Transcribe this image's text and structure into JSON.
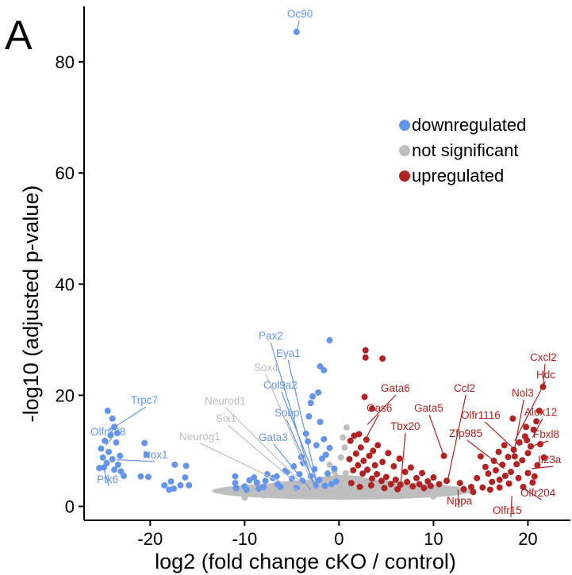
{
  "panel_label": "A",
  "chart_data": {
    "type": "scatter",
    "title": "",
    "xlabel": "log2 (fold change cKO / control)",
    "ylabel": "-log10 (adjusted p-value)",
    "xlim": [
      -27,
      24.5
    ],
    "ylim": [
      -2.5,
      90
    ],
    "xticks": [
      -20,
      -10,
      0,
      10,
      20
    ],
    "yticks": [
      0,
      20,
      40,
      60,
      80
    ],
    "grid": false,
    "legend_position": "top-right",
    "colors": {
      "downregulated": "#6495ED",
      "not_significant": "#BEBEBE",
      "upregulated": "#B22222",
      "axis": "#000000"
    },
    "legend": [
      {
        "label": "downregulated",
        "color": "#6495ED"
      },
      {
        "label": "not significant",
        "color": "#BEBEBE"
      },
      {
        "label": "upregulated",
        "color": "#B22222"
      }
    ],
    "series": [
      {
        "name": "downregulated",
        "color": "#6495ED",
        "points": [
          [
            -24.5,
            17.2
          ],
          [
            -24.0,
            15.8
          ],
          [
            -23.8,
            14.3
          ],
          [
            -23.5,
            13.2
          ],
          [
            -24.2,
            12.8
          ],
          [
            -23.6,
            11.5
          ],
          [
            -24.8,
            11.8
          ],
          [
            -25.2,
            10.4
          ],
          [
            -24.4,
            9.8
          ],
          [
            -23.2,
            9.1
          ],
          [
            -24.0,
            8.5
          ],
          [
            -25.0,
            8.8
          ],
          [
            -24.6,
            7.8
          ],
          [
            -23.4,
            7.5
          ],
          [
            -24.9,
            7.0
          ],
          [
            -23.8,
            6.6
          ],
          [
            -25.4,
            6.9
          ],
          [
            -23.1,
            6.3
          ],
          [
            -22.8,
            5.5
          ],
          [
            -21.0,
            5.4
          ],
          [
            -20.2,
            5.3
          ],
          [
            -20.6,
            11.4
          ],
          [
            -20.4,
            9.3
          ],
          [
            -17.4,
            7.5
          ],
          [
            -17.8,
            4.5
          ],
          [
            -16.2,
            7.3
          ],
          [
            -16.3,
            5.2
          ],
          [
            -15.9,
            3.8
          ],
          [
            -16.8,
            3.8
          ],
          [
            -17.5,
            3.2
          ],
          [
            -18.5,
            3.8
          ],
          [
            -18.0,
            3.0
          ],
          [
            -11.0,
            5.4
          ],
          [
            -11.0,
            4.2
          ],
          [
            -10.9,
            3.3
          ],
          [
            -10.0,
            3.6
          ],
          [
            -9.5,
            4.7
          ],
          [
            -9.0,
            5.2
          ],
          [
            -8.5,
            3.2
          ],
          [
            -8.0,
            3.5
          ],
          [
            -7.6,
            5.8
          ],
          [
            -7.0,
            5.1
          ],
          [
            -6.5,
            4.0
          ],
          [
            -6.2,
            3.5
          ],
          [
            -5.5,
            6.2
          ],
          [
            -5.0,
            5.0
          ],
          [
            -4.8,
            7.2
          ],
          [
            -4.5,
            3.3
          ],
          [
            -4.2,
            5.8
          ],
          [
            -4.0,
            8.9
          ],
          [
            -3.8,
            7.8
          ],
          [
            -3.5,
            13.1
          ],
          [
            -3.3,
            11.7
          ],
          [
            -3.2,
            16.2
          ],
          [
            -3.0,
            18.6
          ],
          [
            -2.8,
            19.8
          ],
          [
            -2.6,
            6.7
          ],
          [
            -2.4,
            11.0
          ],
          [
            -2.2,
            20.5
          ],
          [
            -2.0,
            15.2
          ],
          [
            -1.8,
            8.6
          ],
          [
            -1.6,
            12.1
          ],
          [
            -1.4,
            9.3
          ],
          [
            -1.2,
            5.9
          ],
          [
            -1.0,
            10.5
          ],
          [
            -0.8,
            4.0
          ],
          [
            -0.5,
            6.8
          ],
          [
            -0.3,
            4.5
          ],
          [
            -2.0,
            25.2
          ],
          [
            -1.6,
            24.5
          ],
          [
            -1.0,
            29.9
          ],
          [
            -5.7,
            6.4
          ],
          [
            -6.6,
            5.4
          ],
          [
            -7.8,
            4.6
          ],
          [
            -8.7,
            4.3
          ],
          [
            -9.8,
            3.0
          ],
          [
            -3.9,
            4.6
          ],
          [
            -3.0,
            5.4
          ],
          [
            -2.5,
            3.8
          ],
          [
            -2.1,
            4.8
          ],
          [
            -1.5,
            3.7
          ],
          [
            -4.5,
            85.4
          ]
        ]
      },
      {
        "name": "not significant",
        "color": "#BEBEBE",
        "points": [
          [
            -8.0,
            2.0
          ],
          [
            -6.0,
            2.6
          ],
          [
            -4.0,
            2.9
          ],
          [
            -2.0,
            2.2
          ],
          [
            0.0,
            2.9
          ],
          [
            2.0,
            2.1
          ],
          [
            4.0,
            2.7
          ],
          [
            6.0,
            2.4
          ],
          [
            8.0,
            2.2
          ],
          [
            -10.0,
            1.6
          ],
          [
            10.0,
            1.8
          ],
          [
            -1.0,
            7.5
          ],
          [
            -0.5,
            6.3
          ],
          [
            0.2,
            8.8
          ],
          [
            0.6,
            10.6
          ],
          [
            -0.3,
            5.4
          ],
          [
            0.8,
            14.2
          ],
          [
            0.4,
            12.4
          ],
          [
            -0.6,
            3.6
          ],
          [
            0.9,
            5.0
          ],
          [
            0.7,
            6.0
          ],
          [
            0.1,
            4.4
          ]
        ]
      },
      {
        "name": "upregulated",
        "color": "#B22222",
        "points": [
          [
            2.8,
            28.1
          ],
          [
            2.8,
            26.8
          ],
          [
            4.6,
            26.6
          ],
          [
            2.7,
            19.7
          ],
          [
            3.5,
            17.6
          ],
          [
            1.2,
            11.8
          ],
          [
            1.6,
            12.7
          ],
          [
            2.1,
            13.0
          ],
          [
            2.3,
            10.6
          ],
          [
            2.9,
            12.0
          ],
          [
            3.2,
            9.1
          ],
          [
            3.6,
            10.0
          ],
          [
            4.1,
            11.0
          ],
          [
            4.6,
            8.0
          ],
          [
            5.2,
            9.6
          ],
          [
            5.8,
            7.2
          ],
          [
            6.4,
            8.6
          ],
          [
            7.0,
            6.2
          ],
          [
            7.6,
            7.0
          ],
          [
            8.2,
            5.1
          ],
          [
            8.8,
            6.0
          ],
          [
            9.4,
            4.5
          ],
          [
            10.0,
            5.2
          ],
          [
            10.6,
            4.0
          ],
          [
            11.1,
            9.1
          ],
          [
            11.4,
            4.6
          ],
          [
            1.5,
            6.5
          ],
          [
            2.0,
            7.4
          ],
          [
            2.5,
            5.9
          ],
          [
            3.0,
            6.6
          ],
          [
            3.5,
            5.0
          ],
          [
            4.0,
            5.8
          ],
          [
            4.5,
            4.6
          ],
          [
            5.0,
            5.3
          ],
          [
            5.5,
            4.0
          ],
          [
            6.0,
            4.8
          ],
          [
            6.5,
            3.9
          ],
          [
            7.2,
            4.4
          ],
          [
            7.8,
            3.6
          ],
          [
            8.5,
            4.0
          ],
          [
            9.0,
            3.3
          ],
          [
            9.7,
            3.7
          ],
          [
            1.3,
            4.2
          ],
          [
            2.2,
            3.5
          ],
          [
            3.4,
            3.8
          ],
          [
            4.8,
            3.3
          ],
          [
            6.2,
            3.1
          ],
          [
            1.1,
            8.5
          ],
          [
            1.8,
            9.5
          ],
          [
            2.6,
            8.2
          ],
          [
            3.8,
            7.4
          ],
          [
            14.0,
            3.5
          ],
          [
            14.2,
            2.6
          ],
          [
            14.6,
            5.1
          ],
          [
            15.2,
            3.4
          ],
          [
            15.8,
            5.9
          ],
          [
            16.2,
            4.4
          ],
          [
            16.6,
            6.5
          ],
          [
            17.0,
            4.8
          ],
          [
            17.3,
            7.5
          ],
          [
            17.6,
            5.5
          ],
          [
            17.9,
            8.9
          ],
          [
            18.2,
            6.2
          ],
          [
            18.5,
            10.2
          ],
          [
            18.8,
            7.6
          ],
          [
            19.1,
            11.5
          ],
          [
            19.4,
            8.3
          ],
          [
            19.7,
            12.6
          ],
          [
            20.0,
            9.6
          ],
          [
            20.3,
            10.8
          ],
          [
            20.6,
            13.8
          ],
          [
            20.9,
            15.3
          ],
          [
            21.2,
            17.2
          ],
          [
            21.6,
            21.5
          ],
          [
            15.5,
            7.1
          ],
          [
            16.0,
            3.0
          ],
          [
            17.0,
            3.4
          ],
          [
            18.0,
            4.1
          ],
          [
            19.0,
            5.1
          ],
          [
            20.0,
            6.0
          ],
          [
            21.0,
            7.4
          ],
          [
            20.5,
            4.3
          ],
          [
            19.5,
            3.5
          ],
          [
            18.6,
            9.0
          ],
          [
            19.9,
            11.9
          ],
          [
            21.3,
            11.2
          ],
          [
            21.7,
            8.8
          ],
          [
            18.4,
            15.8
          ],
          [
            16.9,
            9.8
          ],
          [
            17.5,
            11.0
          ],
          [
            13.2,
            3.1
          ],
          [
            12.8,
            4.2
          ],
          [
            15.0,
            9.0
          ],
          [
            16.4,
            8.2
          ],
          [
            19.8,
            14.3
          ],
          [
            20.7,
            5.4
          ]
        ]
      }
    ],
    "annotations": [
      {
        "label": "Oc90",
        "x": -4.5,
        "y": 85.4,
        "group": "downregulated"
      },
      {
        "label": "Pax2",
        "x": -2.8,
        "y": 4.3,
        "group": "downregulated"
      },
      {
        "label": "Eya1",
        "x": -2.4,
        "y": 4.6,
        "group": "downregulated"
      },
      {
        "label": "Sox4",
        "x": -2.6,
        "y": 3.1,
        "group": "not significant"
      },
      {
        "label": "Col9a2",
        "x": -2.2,
        "y": 3.6,
        "group": "downregulated"
      },
      {
        "label": "Neurod1",
        "x": -3.2,
        "y": 2.9,
        "group": "not significant"
      },
      {
        "label": "Sobp",
        "x": -2.4,
        "y": 3.2,
        "group": "downregulated"
      },
      {
        "label": "Six1",
        "x": -3.4,
        "y": 2.6,
        "group": "not significant"
      },
      {
        "label": "Neurog1",
        "x": -3.6,
        "y": 2.3,
        "group": "not significant"
      },
      {
        "label": "Gata3",
        "x": -3.0,
        "y": 3.0,
        "group": "downregulated"
      },
      {
        "label": "Trpc7",
        "x": -24.5,
        "y": 13.5,
        "group": "downregulated"
      },
      {
        "label": "Olfr338",
        "x": -24.7,
        "y": 11.0,
        "group": "downregulated"
      },
      {
        "label": "Nox1",
        "x": -23.5,
        "y": 8.4,
        "group": "downregulated"
      },
      {
        "label": "Ptk6",
        "x": -24.9,
        "y": 6.8,
        "group": "downregulated"
      },
      {
        "label": "Gata6",
        "x": 3.0,
        "y": 14.7,
        "group": "upregulated"
      },
      {
        "label": "Gas6",
        "x": 2.7,
        "y": 11.8,
        "group": "upregulated"
      },
      {
        "label": "Tbx20",
        "x": 6.5,
        "y": 3.5,
        "group": "upregulated"
      },
      {
        "label": "Gata5",
        "x": 11.1,
        "y": 9.1,
        "group": "upregulated"
      },
      {
        "label": "Ccl2",
        "x": 11.5,
        "y": 4.6,
        "group": "upregulated"
      },
      {
        "label": "Olfr1116",
        "x": 18.8,
        "y": 9.9,
        "group": "upregulated"
      },
      {
        "label": "Zfp985",
        "x": 17.5,
        "y": 6.8,
        "group": "upregulated"
      },
      {
        "label": "Nol3",
        "x": 18.4,
        "y": 8.7,
        "group": "upregulated"
      },
      {
        "label": "Hdc",
        "x": 18.6,
        "y": 11.8,
        "group": "upregulated"
      },
      {
        "label": "Cxcl2",
        "x": 21.6,
        "y": 21.5,
        "group": "upregulated"
      },
      {
        "label": "Alox12",
        "x": 20.5,
        "y": 12.4,
        "group": "upregulated"
      },
      {
        "label": "Fbxl8",
        "x": 20.0,
        "y": 10.6,
        "group": "upregulated"
      },
      {
        "label": "Il23a",
        "x": 20.4,
        "y": 6.8,
        "group": "upregulated"
      },
      {
        "label": "Olfr204",
        "x": 19.6,
        "y": 3.1,
        "group": "upregulated"
      },
      {
        "label": "Olfr15",
        "x": 18.3,
        "y": 1.9,
        "group": "upregulated"
      },
      {
        "label": "Nppa",
        "x": 12.6,
        "y": 3.0,
        "group": "upregulated"
      }
    ]
  }
}
